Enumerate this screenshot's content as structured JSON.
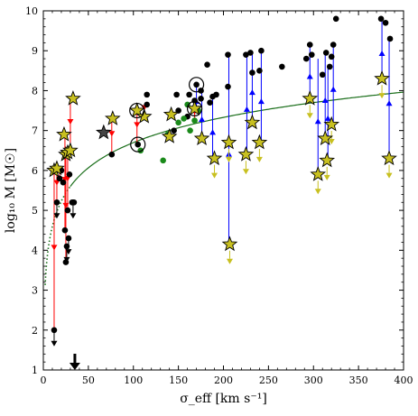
{
  "chart_data": {
    "type": "scatter",
    "xlabel": "σ_eff [km s⁻¹]",
    "ylabel": "log₁₀ M [M☉]",
    "xlim": [
      0,
      400
    ],
    "ylim": [
      1,
      10
    ],
    "x_ticks": [
      0,
      50,
      100,
      150,
      200,
      250,
      300,
      350,
      400
    ],
    "y_ticks": [
      1,
      2,
      3,
      4,
      5,
      6,
      7,
      8,
      9,
      10
    ],
    "grid": false,
    "colors": {
      "black_points": "#000000",
      "green_points": "#1a8a1a",
      "stars": "#c8c020",
      "red_arrows": "#ff0000",
      "blue_arrows": "#0000ff",
      "yellow_arrows": "#c8c020",
      "fit_curve": "#1a6e1a"
    },
    "fit_curve": {
      "x0": 30,
      "y0": 5.6,
      "log_slope": 2.1,
      "x_start": 2,
      "x_end": 400,
      "dotted_below_x": 30
    },
    "marker_arrow_x": 35,
    "black_points": [
      [
        12,
        2.0
      ],
      [
        15,
        5.2
      ],
      [
        18,
        5.8
      ],
      [
        20,
        6.0
      ],
      [
        22,
        5.7
      ],
      [
        24,
        4.5
      ],
      [
        25,
        3.7
      ],
      [
        26,
        4.1
      ],
      [
        27,
        5.0
      ],
      [
        28,
        4.3
      ],
      [
        29,
        5.9
      ],
      [
        30,
        6.5
      ],
      [
        32,
        5.2
      ],
      [
        33,
        5.2
      ],
      [
        34,
        5.2
      ],
      [
        76,
        6.4
      ],
      [
        105,
        6.65
      ],
      [
        115,
        7.65
      ],
      [
        115,
        7.9
      ],
      [
        145,
        7.0
      ],
      [
        150,
        7.5
      ],
      [
        148,
        7.9
      ],
      [
        160,
        7.35
      ],
      [
        162,
        7.9
      ],
      [
        168,
        7.75
      ],
      [
        170,
        8.15
      ],
      [
        175,
        7.8
      ],
      [
        175,
        8.0
      ],
      [
        182,
        8.65
      ],
      [
        185,
        7.7
      ],
      [
        188,
        7.85
      ],
      [
        192,
        7.9
      ],
      [
        205,
        8.1
      ],
      [
        205,
        8.9
      ],
      [
        225,
        8.9
      ],
      [
        230,
        8.95
      ],
      [
        232,
        8.45
      ],
      [
        240,
        8.5
      ],
      [
        242,
        9.0
      ],
      [
        265,
        8.6
      ],
      [
        292,
        8.8
      ],
      [
        296,
        9.15
      ],
      [
        298,
        8.9
      ],
      [
        310,
        8.4
      ],
      [
        314,
        8.95
      ],
      [
        318,
        8.6
      ],
      [
        320,
        8.85
      ],
      [
        322,
        9.15
      ],
      [
        325,
        9.8
      ],
      [
        375,
        9.8
      ],
      [
        380,
        9.7
      ],
      [
        385,
        9.3
      ]
    ],
    "green_points": [
      [
        108,
        6.5
      ],
      [
        133,
        6.25
      ],
      [
        138,
        6.9
      ],
      [
        150,
        7.2
      ],
      [
        156,
        7.3
      ],
      [
        160,
        7.65
      ],
      [
        163,
        7.0
      ],
      [
        168,
        7.25
      ],
      [
        172,
        7.5
      ]
    ],
    "stars": [
      [
        12,
        6.0
      ],
      [
        15,
        6.05
      ],
      [
        23,
        6.9
      ],
      [
        25,
        6.4
      ],
      [
        27,
        6.45
      ],
      [
        30,
        6.5
      ],
      [
        33,
        7.8
      ],
      [
        67,
        6.95
      ],
      [
        77,
        7.3
      ],
      [
        104,
        7.5
      ],
      [
        112,
        7.35
      ],
      [
        140,
        6.85
      ],
      [
        142,
        7.4
      ],
      [
        168,
        7.55
      ],
      [
        176,
        6.8
      ],
      [
        190,
        6.3
      ],
      [
        206,
        6.7
      ],
      [
        207,
        4.15
      ],
      [
        225,
        6.4
      ],
      [
        232,
        7.2
      ],
      [
        240,
        6.7
      ],
      [
        296,
        7.8
      ],
      [
        305,
        5.9
      ],
      [
        313,
        6.8
      ],
      [
        315,
        6.25
      ],
      [
        320,
        7.15
      ],
      [
        376,
        8.3
      ],
      [
        384,
        6.3
      ]
    ],
    "circled_points": [
      [
        105,
        6.65
      ],
      [
        104,
        7.5
      ],
      [
        168,
        7.55
      ],
      [
        170,
        8.15
      ]
    ],
    "red_arrows": [
      [
        12,
        2.0,
        6.0
      ],
      [
        15,
        5.2,
        6.05
      ],
      [
        18,
        5.8,
        6.0
      ],
      [
        24,
        4.5,
        6.9
      ],
      [
        25,
        3.7,
        6.4
      ],
      [
        27,
        5.0,
        6.45
      ],
      [
        30,
        6.5,
        7.8
      ],
      [
        76,
        6.4,
        7.3
      ],
      [
        104,
        6.65,
        7.5
      ],
      [
        112,
        7.35,
        7.65
      ],
      [
        168,
        7.25,
        7.55
      ]
    ],
    "blue_arrows": [
      [
        170,
        8.15,
        7.55
      ],
      [
        176,
        8.0,
        6.8
      ],
      [
        188,
        7.85,
        6.3
      ],
      [
        206,
        8.9,
        4.15
      ],
      [
        226,
        8.9,
        6.4
      ],
      [
        232,
        8.95,
        7.2
      ],
      [
        242,
        9.0,
        6.7
      ],
      [
        296,
        9.15,
        7.8
      ],
      [
        305,
        8.8,
        5.9
      ],
      [
        313,
        8.95,
        6.8
      ],
      [
        316,
        8.6,
        6.25
      ],
      [
        322,
        9.15,
        7.15
      ],
      [
        376,
        9.8,
        8.3
      ],
      [
        384,
        9.3,
        6.3
      ]
    ],
    "black_down_arrows": [
      [
        12,
        2.0
      ],
      [
        15,
        5.2
      ],
      [
        26,
        4.1
      ],
      [
        28,
        4.3
      ],
      [
        33,
        5.2
      ]
    ],
    "yellow_down_arrows": [
      [
        190,
        6.3
      ],
      [
        206,
        6.7
      ],
      [
        207,
        4.15
      ],
      [
        225,
        6.4
      ],
      [
        240,
        6.7
      ],
      [
        296,
        7.8
      ],
      [
        305,
        5.9
      ],
      [
        315,
        6.25
      ],
      [
        320,
        7.15
      ],
      [
        376,
        8.3
      ],
      [
        384,
        6.3
      ]
    ]
  }
}
